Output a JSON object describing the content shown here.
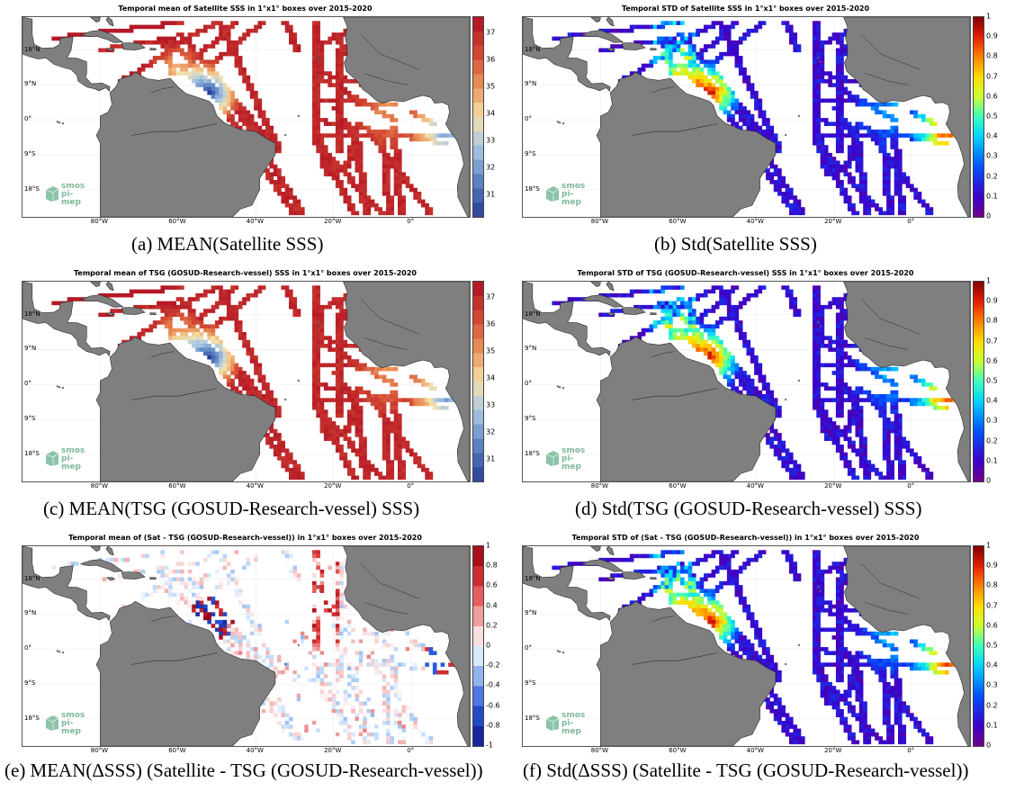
{
  "panels": [
    {
      "title": "Temporal mean of Satellite SSS in 1°x1° boxes over 2015-2020",
      "caption": "(a) MEAN(Satellite SSS)",
      "colormap": "redblue-sss",
      "ticks": [
        "37",
        "36",
        "35",
        "34",
        "33",
        "32",
        "31"
      ]
    },
    {
      "title": "Temporal STD of Satellite SSS in 1°x1° boxes over 2015-2020",
      "caption": "(b) Std(Satellite SSS)",
      "colormap": "jet",
      "ticks": [
        "1",
        "0.9",
        "0.8",
        "0.7",
        "0.6",
        "0.5",
        "0.4",
        "0.3",
        "0.2",
        "0.1",
        "0"
      ]
    },
    {
      "title": "Temporal mean of TSG (GOSUD-Research-vessel) SSS in 1°x1° boxes over 2015-2020",
      "caption": "(c) MEAN(TSG (GOSUD-Research-vessel) SSS)",
      "colormap": "redblue-sss",
      "ticks": [
        "37",
        "36",
        "35",
        "34",
        "33",
        "32",
        "31"
      ]
    },
    {
      "title": "Temporal STD of TSG (GOSUD-Research-vessel) SSS in 1°x1° boxes over 2015-2020",
      "caption": "(d) Std(TSG (GOSUD-Research-vessel) SSS)",
      "colormap": "jet",
      "ticks": [
        "1",
        "0.9",
        "0.8",
        "0.7",
        "0.6",
        "0.5",
        "0.4",
        "0.3",
        "0.2",
        "0.1",
        "0"
      ]
    },
    {
      "title": "Temporal mean of (Sat - TSG (GOSUD-Research-vessel)) in 1°x1° boxes over 2015-2020",
      "caption": "(e) MEAN(ΔSSS) (Satellite - TSG (GOSUD-Research-vessel))",
      "colormap": "diverging",
      "ticks": [
        "1",
        "0.8",
        "0.6",
        "0.4",
        "0.2",
        "0",
        "-0.2",
        "-0.4",
        "-0.6",
        "-0.8",
        "-1"
      ]
    },
    {
      "title": "Temporal STD of (Sat - TSG (GOSUD-Research-vessel)) in 1°x1° boxes over 2015-2020",
      "caption": "(f) Std(ΔSSS) (Satellite - TSG (GOSUD-Research-vessel))",
      "colormap": "jet",
      "ticks": [
        "1",
        "0.9",
        "0.8",
        "0.7",
        "0.6",
        "0.5",
        "0.4",
        "0.3",
        "0.2",
        "0.1",
        "0"
      ]
    }
  ],
  "lat_labels": [
    "18°N",
    "9°N",
    "0°",
    "9°S",
    "18°S"
  ],
  "lon_labels": [
    "80°W",
    "60°W",
    "40°W",
    "20°W",
    "0°"
  ],
  "logo": {
    "line1": "smos",
    "line2": "pi-mep"
  },
  "colors": {
    "land": "#7f7f7f",
    "coast": "#2a2a2a"
  }
}
